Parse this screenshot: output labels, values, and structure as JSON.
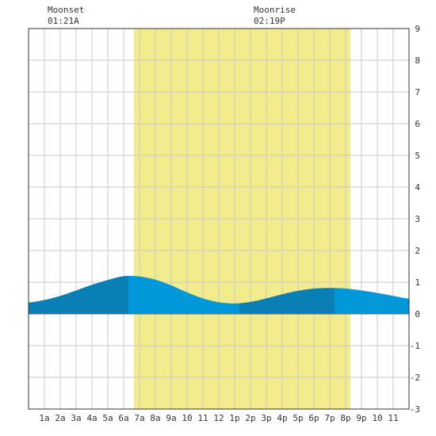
{
  "moon": {
    "moonset_label": "Moonset",
    "moonset_time": "01:21A",
    "moonrise_label": "Moonrise",
    "moonrise_time": "02:19P"
  },
  "chart_data": {
    "type": "area",
    "title": "",
    "xlabel": "",
    "ylabel": "",
    "xlim": [
      0,
      24
    ],
    "ylim": [
      -3,
      9
    ],
    "grid": true,
    "x_ticks": [
      {
        "x": 1,
        "label": "1a"
      },
      {
        "x": 2,
        "label": "2a"
      },
      {
        "x": 3,
        "label": "3a"
      },
      {
        "x": 4,
        "label": "4a"
      },
      {
        "x": 5,
        "label": "5a"
      },
      {
        "x": 6,
        "label": "6a"
      },
      {
        "x": 7,
        "label": "7a"
      },
      {
        "x": 8,
        "label": "8a"
      },
      {
        "x": 9,
        "label": "9a"
      },
      {
        "x": 10,
        "label": "10"
      },
      {
        "x": 11,
        "label": "11"
      },
      {
        "x": 12,
        "label": "12"
      },
      {
        "x": 13,
        "label": "1p"
      },
      {
        "x": 14,
        "label": "2p"
      },
      {
        "x": 15,
        "label": "3p"
      },
      {
        "x": 16,
        "label": "4p"
      },
      {
        "x": 17,
        "label": "5p"
      },
      {
        "x": 18,
        "label": "6p"
      },
      {
        "x": 19,
        "label": "7p"
      },
      {
        "x": 20,
        "label": "8p"
      },
      {
        "x": 21,
        "label": "9p"
      },
      {
        "x": 22,
        "label": "10"
      },
      {
        "x": 23,
        "label": "11"
      }
    ],
    "y_ticks": [
      -3,
      -2,
      -1,
      0,
      1,
      2,
      3,
      4,
      5,
      6,
      7,
      8,
      9
    ],
    "daylight": {
      "start": 6.65,
      "end": 20.3
    },
    "moonset_hour": 1.35,
    "moonrise_hour": 14.32,
    "tide_extremes": [
      {
        "x": 6.3,
        "y": 1.2
      },
      {
        "x": 13.3,
        "y": 0.32
      },
      {
        "x": 19.3,
        "y": 0.82
      }
    ],
    "series": [
      {
        "values": [
          {
            "x": 0,
            "y": 0.36
          },
          {
            "x": 1,
            "y": 0.44
          },
          {
            "x": 2,
            "y": 0.57
          },
          {
            "x": 3,
            "y": 0.74
          },
          {
            "x": 4,
            "y": 0.92
          },
          {
            "x": 5,
            "y": 1.07
          },
          {
            "x": 6,
            "y": 1.19
          },
          {
            "x": 7,
            "y": 1.18
          },
          {
            "x": 8,
            "y": 1.08
          },
          {
            "x": 9,
            "y": 0.9
          },
          {
            "x": 10,
            "y": 0.68
          },
          {
            "x": 11,
            "y": 0.49
          },
          {
            "x": 12,
            "y": 0.37
          },
          {
            "x": 13,
            "y": 0.33
          },
          {
            "x": 14,
            "y": 0.38
          },
          {
            "x": 15,
            "y": 0.49
          },
          {
            "x": 16,
            "y": 0.62
          },
          {
            "x": 17,
            "y": 0.73
          },
          {
            "x": 18,
            "y": 0.8
          },
          {
            "x": 19,
            "y": 0.82
          },
          {
            "x": 20,
            "y": 0.8
          },
          {
            "x": 21,
            "y": 0.74
          },
          {
            "x": 22,
            "y": 0.66
          },
          {
            "x": 23,
            "y": 0.57
          },
          {
            "x": 24,
            "y": 0.48
          }
        ]
      }
    ]
  },
  "colors": {
    "daylight": "#f3ec8c",
    "tide_dark": "#0a7fb5",
    "tide_light": "#0098d8",
    "grid": "#c8c8c8",
    "axis": "#333333"
  }
}
